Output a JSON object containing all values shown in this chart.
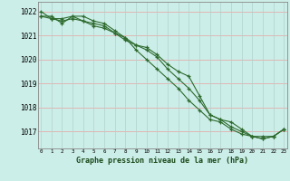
{
  "title": "Graphe pression niveau de la mer (hPa)",
  "background_color": "#cceee8",
  "grid_color_h": "#e8a0a0",
  "grid_color_v": "#b0d0cc",
  "line_color": "#2d6a2d",
  "x_ticks": [
    0,
    1,
    2,
    3,
    4,
    5,
    6,
    7,
    8,
    9,
    10,
    11,
    12,
    13,
    14,
    15,
    16,
    17,
    18,
    19,
    20,
    21,
    22,
    23
  ],
  "ylim": [
    1016.3,
    1022.4
  ],
  "y_ticks": [
    1017,
    1018,
    1019,
    1020,
    1021,
    1022
  ],
  "series1": [
    1022.0,
    1021.7,
    1021.7,
    1021.8,
    1021.6,
    1021.4,
    1021.3,
    1021.1,
    1020.8,
    1020.6,
    1020.5,
    1020.2,
    1019.8,
    1019.5,
    1019.3,
    1018.5,
    1017.7,
    1017.5,
    1017.4,
    1017.1,
    1016.8,
    1016.7,
    1016.8,
    1017.1
  ],
  "series2": [
    1021.8,
    1021.8,
    1021.5,
    1021.8,
    1021.8,
    1021.6,
    1021.5,
    1021.2,
    1020.9,
    1020.4,
    1020.0,
    1019.6,
    1019.2,
    1018.8,
    1018.3,
    1017.9,
    1017.5,
    1017.4,
    1017.1,
    1016.9,
    1016.8,
    1016.8,
    1016.8,
    1017.1
  ],
  "series3": [
    1021.8,
    1021.7,
    1021.6,
    1021.7,
    1021.6,
    1021.5,
    1021.4,
    1021.1,
    1020.9,
    1020.6,
    1020.4,
    1020.1,
    1019.6,
    1019.2,
    1018.8,
    1018.3,
    1017.7,
    1017.5,
    1017.2,
    1017.0,
    1016.8,
    1016.7,
    1016.8,
    1017.1
  ],
  "figsize": [
    3.2,
    2.0
  ],
  "dpi": 100
}
